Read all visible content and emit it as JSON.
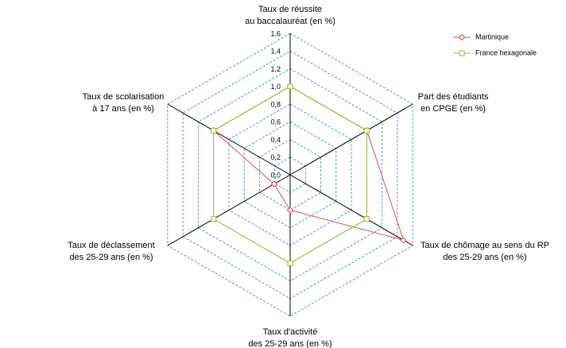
{
  "chart_data": {
    "type": "radar",
    "categories": [
      [
        "Taux de réussite",
        "au baccalauréat (en %)"
      ],
      [
        "Part des étudiants",
        "en CPGE (en %)"
      ],
      [
        "Taux de chômage au sens du RP",
        "des 25-29 ans (en %)"
      ],
      [
        "Taux d'activité",
        "des 25-29 ans (en %)"
      ],
      [
        "Taux de déclassement",
        "des 25-29 ans (en %)"
      ],
      [
        "Taux de scolarisation",
        "à 17 ans (en %)"
      ]
    ],
    "series": [
      {
        "name": "Martinique",
        "color": "#e0484a",
        "marker": "diamond",
        "values": [
          1.0,
          1.0,
          1.48,
          0.4,
          0.21,
          1.0
        ]
      },
      {
        "name": "France hexagonale",
        "color": "#9bbb2c",
        "marker": "square",
        "values": [
          1.0,
          1.0,
          1.0,
          1.0,
          1.0,
          1.0
        ]
      }
    ],
    "ylim": [
      0,
      1.6
    ],
    "yticks": [
      {
        "value": 0,
        "label": "0,0"
      },
      {
        "value": 0.2,
        "label": "0,2"
      },
      {
        "value": 0.4,
        "label": "0,4"
      },
      {
        "value": 0.6,
        "label": "0,6"
      },
      {
        "value": 0.8,
        "label": "0,8"
      },
      {
        "value": 1.0,
        "label": "1,0"
      },
      {
        "value": 1.2,
        "label": "1,2"
      },
      {
        "value": 1.4,
        "label": "1,4"
      },
      {
        "value": 1.6,
        "label": "1,6"
      }
    ],
    "grid": true,
    "legend": "top-right"
  }
}
